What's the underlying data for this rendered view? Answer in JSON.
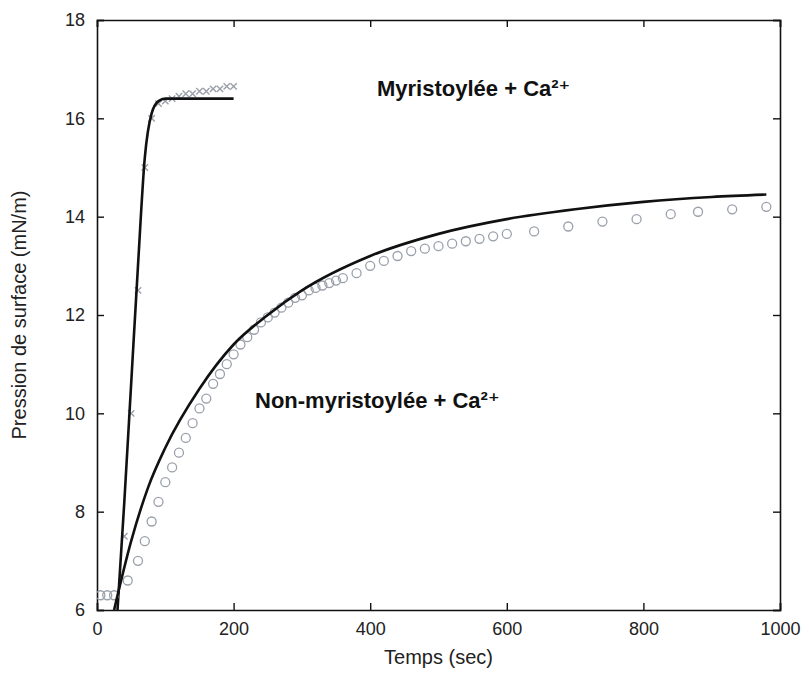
{
  "chart_data": {
    "type": "scatter",
    "x_label": "Temps (sec)",
    "y_label": "Pression de surface (mN/m)",
    "xlim": [
      0,
      1000
    ],
    "xticks": [
      0,
      200,
      400,
      600,
      800,
      1000
    ],
    "ylim": [
      6,
      18
    ],
    "yticks": [
      6,
      8,
      10,
      12,
      14,
      16,
      18
    ],
    "grid": false,
    "annotations": [
      "Myristoylée + Ca²⁺",
      "Non-myristoylée + Ca²⁺"
    ],
    "series": [
      {
        "type": "scatter",
        "marker": "x",
        "color": "#9aa0aa",
        "x": [
          40,
          50,
          60,
          70,
          80,
          90,
          100,
          110,
          120,
          130,
          140,
          150,
          160,
          170,
          180,
          190,
          200
        ],
        "values": [
          7.5,
          10,
          12.5,
          15,
          16,
          16.3,
          16.35,
          16.4,
          16.45,
          16.5,
          16.5,
          16.55,
          16.55,
          16.6,
          16.6,
          16.65,
          16.65
        ]
      },
      {
        "type": "line",
        "line_style": "solid",
        "color": "#111111",
        "x": [
          30,
          40,
          50,
          60,
          70,
          80,
          90,
          100,
          120,
          150,
          200
        ],
        "values": [
          6,
          8.2,
          10.6,
          13,
          15.2,
          16.1,
          16.35,
          16.4,
          16.4,
          16.4,
          16.4
        ]
      },
      {
        "type": "scatter",
        "marker": "circle",
        "color": "#9aa0aa",
        "x": [
          5,
          15,
          25,
          45,
          60,
          70,
          80,
          90,
          100,
          110,
          120,
          130,
          140,
          150,
          160,
          170,
          180,
          190,
          200,
          210,
          220,
          230,
          240,
          250,
          260,
          270,
          280,
          290,
          300,
          310,
          320,
          330,
          340,
          350,
          360,
          380,
          400,
          420,
          440,
          460,
          480,
          500,
          520,
          540,
          560,
          580,
          600,
          640,
          690,
          740,
          790,
          840,
          880,
          930,
          980
        ],
        "values": [
          6.3,
          6.3,
          6.3,
          6.6,
          7,
          7.4,
          7.8,
          8.2,
          8.6,
          8.9,
          9.2,
          9.5,
          9.8,
          10.1,
          10.3,
          10.6,
          10.8,
          11,
          11.2,
          11.4,
          11.55,
          11.7,
          11.85,
          11.95,
          12.05,
          12.15,
          12.25,
          12.35,
          12.4,
          12.5,
          12.55,
          12.6,
          12.65,
          12.7,
          12.75,
          12.85,
          13,
          13.1,
          13.2,
          13.3,
          13.35,
          13.4,
          13.45,
          13.5,
          13.55,
          13.6,
          13.65,
          13.7,
          13.8,
          13.9,
          13.95,
          14.05,
          14.1,
          14.15,
          14.2
        ]
      },
      {
        "type": "line",
        "line_style": "solid",
        "color": "#111111",
        "x": [
          25,
          50,
          75,
          100,
          150,
          200,
          250,
          300,
          400,
          500,
          600,
          700,
          800,
          900,
          980
        ],
        "values": [
          6,
          7.4,
          8.5,
          9.3,
          10.5,
          11.4,
          12,
          12.5,
          13.2,
          13.65,
          13.95,
          14.15,
          14.3,
          14.4,
          14.45
        ]
      }
    ]
  }
}
